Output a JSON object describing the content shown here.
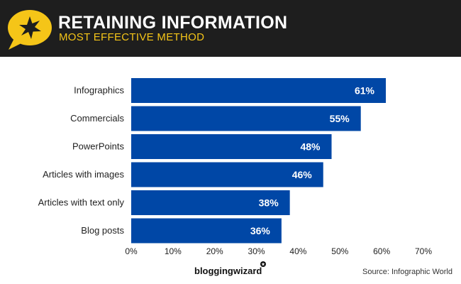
{
  "header": {
    "title": "RETAINING INFORMATION",
    "subtitle": "MOST EFFECTIVE METHOD",
    "background_color": "#1e1e1e",
    "badge_icon": "star-speech-bubble-icon",
    "badge_color": "#f5c518"
  },
  "chart_data": {
    "type": "bar",
    "orientation": "horizontal",
    "categories": [
      "Infographics",
      "Commercials",
      "PowerPoints",
      "Articles with images",
      "Articles with text only",
      "Blog posts"
    ],
    "values": [
      61,
      55,
      48,
      46,
      38,
      36
    ],
    "value_labels": [
      "61%",
      "55%",
      "48%",
      "46%",
      "38%",
      "36%"
    ],
    "x_ticks": [
      "0%",
      "10%",
      "20%",
      "30%",
      "40%",
      "50%",
      "60%",
      "70%"
    ],
    "xlim": [
      0,
      70
    ],
    "title": "RETAINING INFORMATION",
    "subtitle": "MOST EFFECTIVE METHOD",
    "xlabel": "",
    "ylabel": "",
    "grid": false,
    "legend": "none",
    "bar_color": "#0047a6",
    "label_color": "#ffffff"
  },
  "footer": {
    "logo_text": "bloggingwizard",
    "source": "Source: Infographic World"
  }
}
